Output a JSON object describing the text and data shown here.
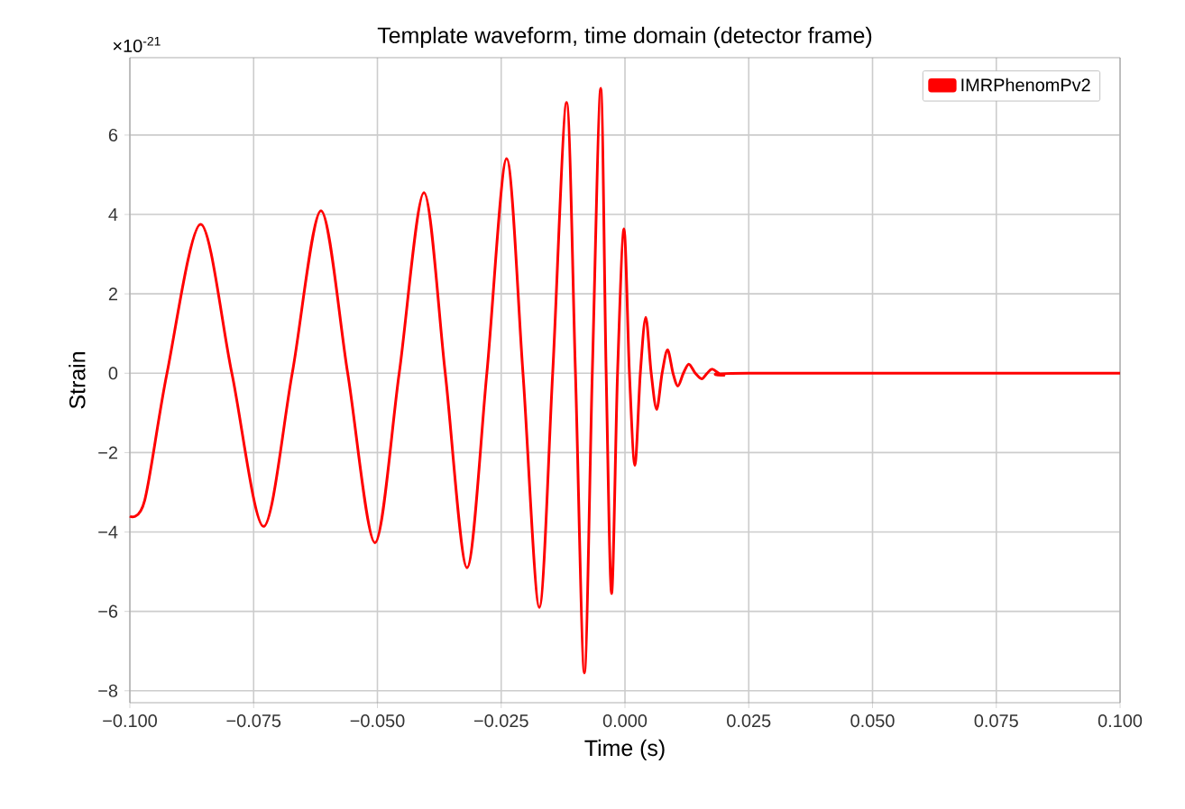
{
  "chart_data": {
    "type": "line",
    "title": "Template waveform, time domain (detector frame)",
    "xlabel": "Time (s)",
    "ylabel": "Strain",
    "annotations": [
      "×10$^{-21}$"
    ],
    "xlim": [
      -0.1,
      0.1
    ],
    "ylim": [
      -8.3,
      7.95
    ],
    "xticks": [
      {
        "value": -0.1,
        "label": "−0.100"
      },
      {
        "value": -0.075,
        "label": "−0.075"
      },
      {
        "value": -0.05,
        "label": "−0.050"
      },
      {
        "value": -0.025,
        "label": "−0.025"
      },
      {
        "value": 0,
        "label": "0.000"
      },
      {
        "value": 0.025,
        "label": "0.025"
      },
      {
        "value": 0.05,
        "label": "0.050"
      },
      {
        "value": 0.075,
        "label": "0.075"
      },
      {
        "value": 0.1,
        "label": "0.100"
      }
    ],
    "yticks": [
      {
        "value": -8,
        "label": "−8"
      },
      {
        "value": -6,
        "label": "−6"
      },
      {
        "value": -4,
        "label": "−4"
      },
      {
        "value": -2,
        "label": "−2"
      },
      0,
      2,
      4,
      6
    ],
    "grid": true,
    "legend": "top right",
    "series": [
      {
        "name": "IMRPhenomPv2",
        "color": "#ff0000",
        "x": [
          -0.1,
          -0.097,
          -0.0925,
          -0.0857,
          -0.0794,
          -0.073,
          -0.0672,
          -0.0614,
          -0.056,
          -0.0505,
          -0.0456,
          -0.0406,
          -0.0363,
          -0.0319,
          -0.0279,
          -0.0239,
          -0.0206,
          -0.0173,
          -0.0146,
          -0.0118,
          -0.01,
          -0.0082,
          -0.0066,
          -0.0049,
          -0.0038,
          -0.0027,
          -0.0015,
          -0.0002,
          0.0009,
          0.002,
          0.0031,
          0.0042,
          0.0053,
          0.0064,
          0.0075,
          0.0086,
          0.0097,
          0.0107,
          0.0118,
          0.0129,
          0.0142,
          0.0155,
          0.0166,
          0.0177,
          0.0199,
          0.025,
          0.1
        ],
        "values": [
          -3.6,
          -3.2,
          0,
          3.75,
          0,
          -3.86,
          0,
          4.09,
          0,
          -4.27,
          0,
          4.55,
          0,
          -4.9,
          0,
          5.41,
          0,
          -5.9,
          0,
          6.82,
          0,
          -7.55,
          0,
          7.18,
          0,
          -5.55,
          0,
          3.64,
          0,
          -2.32,
          0,
          1.41,
          0,
          -0.91,
          0,
          0.59,
          0,
          -0.32,
          0,
          0.23,
          0,
          -0.14,
          0,
          0.1,
          -0.05,
          0,
          0
        ]
      }
    ]
  }
}
